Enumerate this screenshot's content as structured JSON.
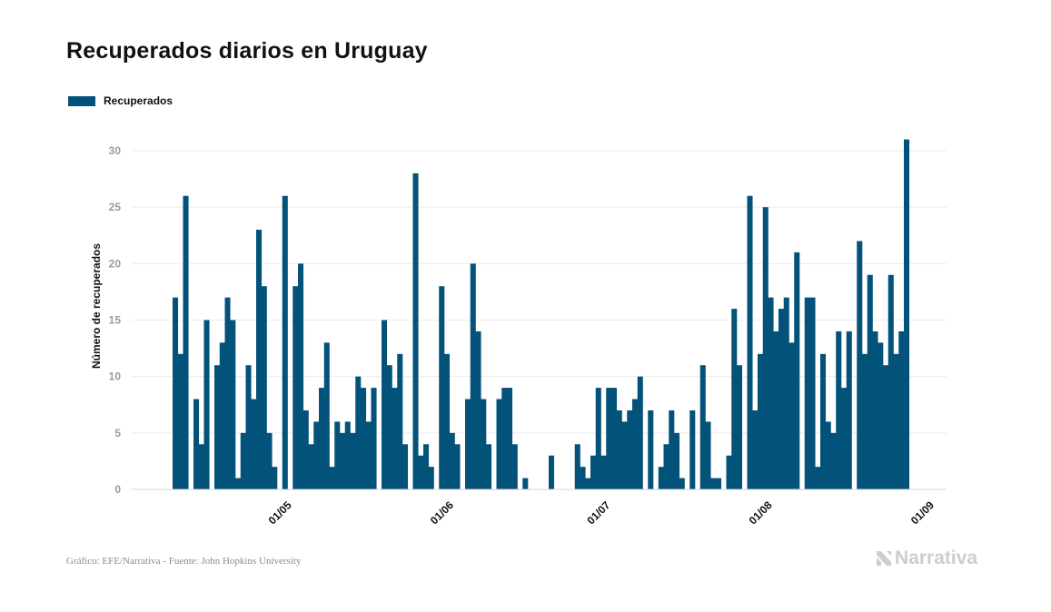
{
  "title": "Recuperados diarios en Uruguay",
  "legend": {
    "label": "Recuperados",
    "color": "#02527a"
  },
  "footer": {
    "source": "Gráfico: EFE/Narrativa - Fuente: John Hopkins University",
    "brand": "Narrativa",
    "brand_icon": "narrativa-logo-icon"
  },
  "chart_data": {
    "type": "bar",
    "ylabel": "Número de recuperados",
    "xlabel": "",
    "ylim": [
      0,
      32
    ],
    "yticks": [
      0,
      5,
      10,
      15,
      20,
      25,
      30
    ],
    "xticks": [
      {
        "date": "2020-05-01",
        "label": "01/05"
      },
      {
        "date": "2020-06-01",
        "label": "01/06"
      },
      {
        "date": "2020-07-01",
        "label": "01/07"
      },
      {
        "date": "2020-08-01",
        "label": "01/08"
      },
      {
        "date": "2020-09-01",
        "label": "01/09"
      }
    ],
    "grid": true,
    "legend_position": "top-left",
    "series": [
      {
        "name": "Recuperados",
        "color": "#02527a",
        "start_date": "2020-04-10",
        "values": [
          17,
          12,
          26,
          0,
          8,
          4,
          15,
          0,
          11,
          13,
          17,
          15,
          1,
          5,
          11,
          8,
          23,
          18,
          5,
          2,
          0,
          26,
          0,
          18,
          20,
          7,
          4,
          6,
          9,
          13,
          2,
          6,
          5,
          6,
          5,
          10,
          9,
          6,
          9,
          0,
          15,
          11,
          9,
          12,
          4,
          0,
          28,
          3,
          4,
          2,
          0,
          18,
          12,
          5,
          4,
          0,
          8,
          20,
          14,
          8,
          4,
          0,
          8,
          9,
          9,
          4,
          0,
          1,
          0,
          0,
          0,
          0,
          3,
          0,
          0,
          0,
          0,
          4,
          2,
          1,
          3,
          9,
          3,
          9,
          9,
          7,
          6,
          7,
          8,
          10,
          0,
          7,
          0,
          2,
          4,
          7,
          5,
          1,
          0,
          7,
          0,
          11,
          6,
          1,
          1,
          0,
          3,
          16,
          11,
          0,
          26,
          7,
          12,
          25,
          17,
          14,
          16,
          17,
          13,
          21,
          0,
          17,
          17,
          2,
          12,
          6,
          5,
          14,
          9,
          14,
          0,
          22,
          12,
          19,
          14,
          13,
          11,
          19,
          12,
          14,
          31
        ]
      }
    ]
  }
}
